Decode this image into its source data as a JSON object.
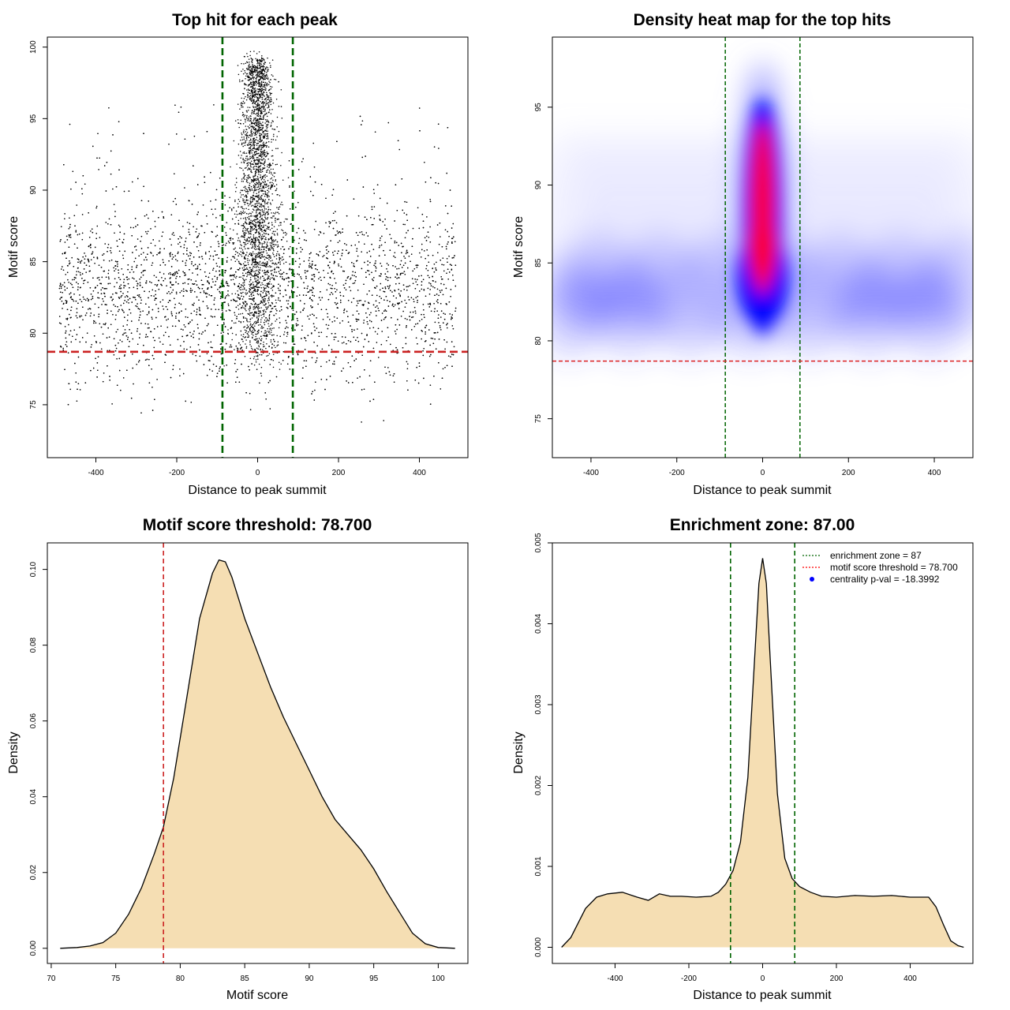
{
  "chart_data": [
    {
      "type": "scatter",
      "title": "Top hit for each peak",
      "xlabel": "Distance to peak summit",
      "ylabel": "Motif score",
      "xlim": [
        -520,
        520
      ],
      "ylim": [
        71.3,
        100.7
      ],
      "xticks": [
        -400,
        -200,
        0,
        200,
        400
      ],
      "yticks": [
        75,
        80,
        85,
        90,
        95,
        100
      ],
      "vlines": [
        -87,
        87
      ],
      "hline": 78.7,
      "point_summary": {
        "central_cluster": {
          "x_center": 0,
          "x_spread": 25,
          "y_range": [
            78,
            99.5
          ]
        },
        "background": {
          "x_range": [
            -490,
            490
          ],
          "y_center": 83,
          "y_spread": 3
        }
      }
    },
    {
      "type": "heatmap",
      "title": "Density heat map for the top hits",
      "xlabel": "Distance to peak summit",
      "ylabel": "Motif score",
      "xlim": [
        -490,
        490
      ],
      "ylim": [
        72.5,
        99.5
      ],
      "xticks": [
        -400,
        -200,
        0,
        200,
        400
      ],
      "yticks": [
        75,
        80,
        85,
        90,
        95
      ],
      "vlines": [
        -87,
        87
      ],
      "hline": 78.7,
      "color_scale": [
        "#ffffff",
        "#0000ff",
        "#ff0000"
      ],
      "density_summary": {
        "hotspot_x": 0,
        "hotspot_y_range": [
          83,
          95
        ],
        "background_band_y": 83
      }
    },
    {
      "type": "area",
      "title": "Motif score threshold: 78.700",
      "xlabel": "Motif score",
      "ylabel": "Density",
      "xlim": [
        69.7,
        102.3
      ],
      "ylim": [
        -0.004,
        0.107
      ],
      "xticks": [
        70,
        75,
        80,
        85,
        90,
        95,
        100
      ],
      "yticks": [
        0.0,
        0.02,
        0.04,
        0.06,
        0.08,
        0.1
      ],
      "ytick_labels": [
        "0.00",
        "0.02",
        "0.04",
        "0.06",
        "0.08",
        "0.10"
      ],
      "vline": 78.7,
      "fill_color": "#f5deb3",
      "x": [
        70.7,
        72,
        73,
        74,
        75,
        76,
        77,
        78,
        78.7,
        79.5,
        80.5,
        81.5,
        82.5,
        83,
        83.5,
        84,
        85,
        86,
        87,
        88,
        89,
        90,
        91,
        92,
        93,
        94,
        95,
        96,
        97,
        98,
        99,
        100,
        101.3
      ],
      "y": [
        0.0,
        0.0002,
        0.0006,
        0.0015,
        0.004,
        0.009,
        0.016,
        0.025,
        0.032,
        0.045,
        0.066,
        0.087,
        0.099,
        0.1025,
        0.102,
        0.098,
        0.087,
        0.078,
        0.069,
        0.061,
        0.054,
        0.047,
        0.04,
        0.034,
        0.03,
        0.026,
        0.021,
        0.015,
        0.0095,
        0.004,
        0.0012,
        0.0002,
        0.0
      ]
    },
    {
      "type": "area",
      "title": "Enrichment zone: 87.00",
      "xlabel": "Distance to peak summit",
      "ylabel": "Density",
      "xlim": [
        -570,
        570
      ],
      "ylim": [
        -0.0002,
        0.005
      ],
      "xticks": [
        -400,
        -200,
        0,
        200,
        400
      ],
      "yticks": [
        0.0,
        0.001,
        0.002,
        0.003,
        0.004,
        0.005
      ],
      "ytick_labels": [
        "0.000",
        "0.001",
        "0.002",
        "0.003",
        "0.004",
        "0.005"
      ],
      "vlines": [
        -87,
        87
      ],
      "fill_color": "#f5deb3",
      "x": [
        -545,
        -520,
        -500,
        -480,
        -450,
        -420,
        -380,
        -340,
        -310,
        -280,
        -250,
        -220,
        -180,
        -140,
        -120,
        -100,
        -80,
        -60,
        -40,
        -20,
        -10,
        0,
        10,
        20,
        40,
        60,
        80,
        100,
        130,
        160,
        200,
        250,
        300,
        350,
        400,
        450,
        470,
        490,
        510,
        530,
        545
      ],
      "y": [
        0.0,
        0.00012,
        0.0003,
        0.00048,
        0.00062,
        0.00066,
        0.00068,
        0.00062,
        0.00058,
        0.00066,
        0.00063,
        0.00063,
        0.00062,
        0.00063,
        0.00068,
        0.00078,
        0.00095,
        0.0013,
        0.0021,
        0.0037,
        0.0045,
        0.00481,
        0.0045,
        0.0036,
        0.0019,
        0.0011,
        0.00085,
        0.00075,
        0.00068,
        0.00063,
        0.00062,
        0.00064,
        0.00063,
        0.00064,
        0.00062,
        0.00062,
        0.0005,
        0.00028,
        8e-05,
        2e-05,
        0.0
      ],
      "legend": {
        "position": "top-right",
        "entries": [
          {
            "label": "enrichment zone = 87",
            "color": "#006400",
            "style": "dotted-line"
          },
          {
            "label": "motif score threshold = 78.700",
            "color": "#ff0000",
            "style": "dotted-line"
          },
          {
            "label": "centrality p-val = -18.3992",
            "color": "#0000ff",
            "style": "point"
          }
        ]
      }
    }
  ]
}
